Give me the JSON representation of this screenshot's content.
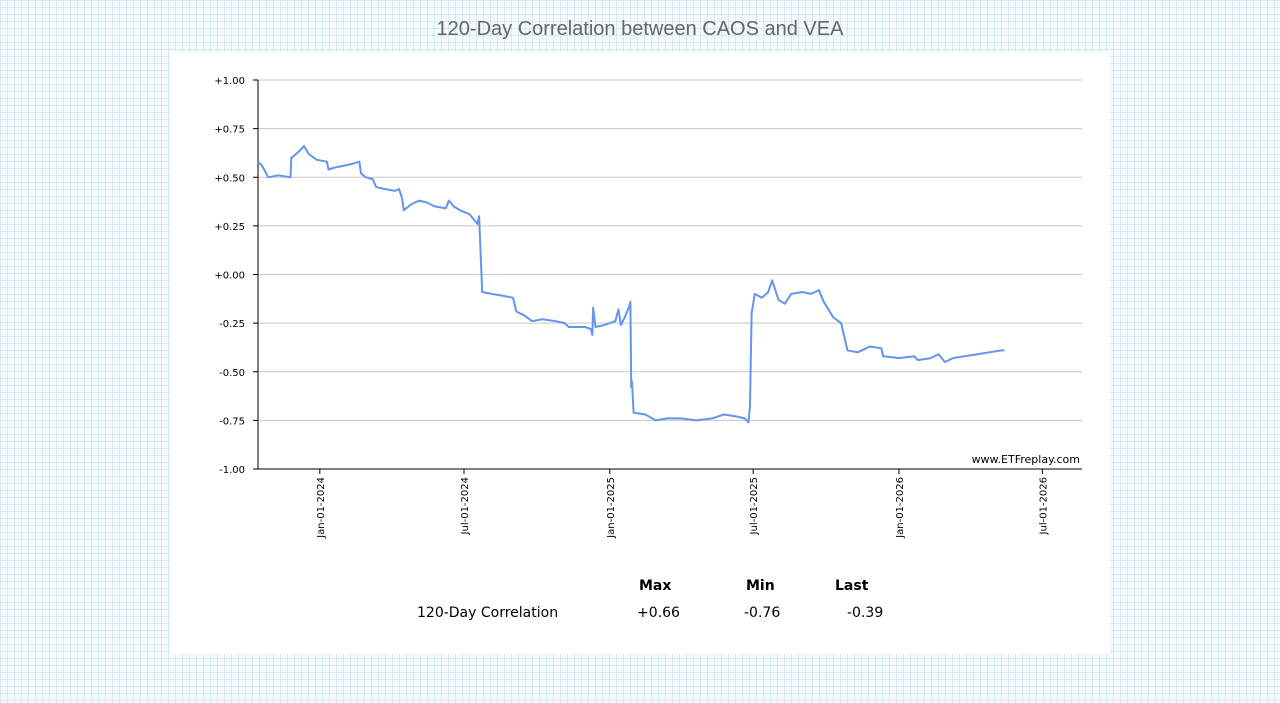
{
  "chart_data": {
    "type": "line",
    "title": "120-Day Correlation between CAOS and VEA",
    "watermark": "www.ETFreplay.com",
    "ylim": [
      -1.0,
      1.0
    ],
    "y_ticks": [
      {
        "value": 1.0,
        "label": "+1.00"
      },
      {
        "value": 0.75,
        "label": "+0.75"
      },
      {
        "value": 0.5,
        "label": "+0.50"
      },
      {
        "value": 0.25,
        "label": "+0.25"
      },
      {
        "value": 0.0,
        "label": "+0.00"
      },
      {
        "value": -0.25,
        "label": "-0.25"
      },
      {
        "value": -0.5,
        "label": "-0.50"
      },
      {
        "value": -0.75,
        "label": "-0.75"
      },
      {
        "value": -1.0,
        "label": "-1.00"
      }
    ],
    "x_ticks": [
      {
        "date": "2024-01-01",
        "label": "Jan-01-2024"
      },
      {
        "date": "2024-07-01",
        "label": "Jul-01-2024"
      },
      {
        "date": "2025-01-01",
        "label": "Jan-01-2025"
      },
      {
        "date": "2025-07-01",
        "label": "Jul-01-2025"
      },
      {
        "date": "2026-01-01",
        "label": "Jan-01-2026"
      },
      {
        "date": "2026-07-01",
        "label": "Jul-01-2026"
      }
    ],
    "xlim": [
      "2023-10-15",
      "2026-08-20"
    ],
    "grid": true,
    "line_color": "#6495ed",
    "series": [
      {
        "points": [
          [
            "2023-10-15",
            0.58
          ],
          [
            "2023-10-20",
            0.56
          ],
          [
            "2023-10-28",
            0.5
          ],
          [
            "2023-11-10",
            0.51
          ],
          [
            "2023-11-25",
            0.5
          ],
          [
            "2023-11-26",
            0.6
          ],
          [
            "2023-12-05",
            0.63
          ],
          [
            "2023-12-12",
            0.66
          ],
          [
            "2023-12-18",
            0.62
          ],
          [
            "2023-12-28",
            0.59
          ],
          [
            "2024-01-10",
            0.58
          ],
          [
            "2024-01-12",
            0.54
          ],
          [
            "2024-01-20",
            0.55
          ],
          [
            "2024-02-01",
            0.56
          ],
          [
            "2024-02-12",
            0.57
          ],
          [
            "2024-02-20",
            0.58
          ],
          [
            "2024-02-22",
            0.52
          ],
          [
            "2024-02-28",
            0.5
          ],
          [
            "2024-03-08",
            0.49
          ],
          [
            "2024-03-12",
            0.45
          ],
          [
            "2024-03-22",
            0.44
          ],
          [
            "2024-04-05",
            0.43
          ],
          [
            "2024-04-10",
            0.44
          ],
          [
            "2024-04-14",
            0.39
          ],
          [
            "2024-04-16",
            0.33
          ],
          [
            "2024-04-25",
            0.36
          ],
          [
            "2024-05-05",
            0.38
          ],
          [
            "2024-05-15",
            0.37
          ],
          [
            "2024-05-25",
            0.35
          ],
          [
            "2024-06-08",
            0.34
          ],
          [
            "2024-06-12",
            0.38
          ],
          [
            "2024-06-18",
            0.35
          ],
          [
            "2024-06-26",
            0.33
          ],
          [
            "2024-07-08",
            0.31
          ],
          [
            "2024-07-18",
            0.26
          ],
          [
            "2024-07-20",
            0.3
          ],
          [
            "2024-07-24",
            -0.09
          ],
          [
            "2024-08-05",
            -0.1
          ],
          [
            "2024-08-20",
            -0.11
          ],
          [
            "2024-09-01",
            -0.12
          ],
          [
            "2024-09-05",
            -0.19
          ],
          [
            "2024-09-15",
            -0.21
          ],
          [
            "2024-09-25",
            -0.24
          ],
          [
            "2024-10-08",
            -0.23
          ],
          [
            "2024-10-25",
            -0.24
          ],
          [
            "2024-11-05",
            -0.25
          ],
          [
            "2024-11-10",
            -0.27
          ],
          [
            "2024-11-20",
            -0.27
          ],
          [
            "2024-12-01",
            -0.27
          ],
          [
            "2024-12-08",
            -0.28
          ],
          [
            "2024-12-10",
            -0.31
          ],
          [
            "2024-12-11",
            -0.17
          ],
          [
            "2024-12-14",
            -0.27
          ],
          [
            "2024-12-25",
            -0.26
          ],
          [
            "2025-01-08",
            -0.24
          ],
          [
            "2025-01-12",
            -0.18
          ],
          [
            "2025-01-15",
            -0.26
          ],
          [
            "2025-01-20",
            -0.22
          ],
          [
            "2025-01-25",
            -0.17
          ],
          [
            "2025-01-27",
            -0.14
          ],
          [
            "2025-01-28",
            -0.58
          ],
          [
            "2025-01-29",
            -0.55
          ],
          [
            "2025-01-31",
            -0.71
          ],
          [
            "2025-02-15",
            -0.72
          ],
          [
            "2025-02-28",
            -0.75
          ],
          [
            "2025-03-15",
            -0.74
          ],
          [
            "2025-04-01",
            -0.74
          ],
          [
            "2025-04-20",
            -0.75
          ],
          [
            "2025-05-10",
            -0.74
          ],
          [
            "2025-05-25",
            -0.72
          ],
          [
            "2025-06-10",
            -0.73
          ],
          [
            "2025-06-20",
            -0.74
          ],
          [
            "2025-06-25",
            -0.76
          ],
          [
            "2025-06-27",
            -0.68
          ],
          [
            "2025-06-29",
            -0.2
          ],
          [
            "2025-07-03",
            -0.1
          ],
          [
            "2025-07-12",
            -0.12
          ],
          [
            "2025-07-20",
            -0.09
          ],
          [
            "2025-07-25",
            -0.03
          ],
          [
            "2025-08-02",
            -0.13
          ],
          [
            "2025-08-10",
            -0.15
          ],
          [
            "2025-08-18",
            -0.1
          ],
          [
            "2025-09-01",
            -0.09
          ],
          [
            "2025-09-12",
            -0.1
          ],
          [
            "2025-09-22",
            -0.08
          ],
          [
            "2025-09-28",
            -0.14
          ],
          [
            "2025-10-10",
            -0.22
          ],
          [
            "2025-10-20",
            -0.25
          ],
          [
            "2025-10-28",
            -0.39
          ],
          [
            "2025-11-10",
            -0.4
          ],
          [
            "2025-11-25",
            -0.37
          ],
          [
            "2025-12-10",
            -0.38
          ],
          [
            "2025-12-12",
            -0.42
          ],
          [
            "2026-01-01",
            -0.43
          ],
          [
            "2026-01-20",
            -0.42
          ],
          [
            "2026-01-25",
            -0.44
          ],
          [
            "2026-02-10",
            -0.43
          ],
          [
            "2026-02-20",
            -0.41
          ],
          [
            "2026-02-28",
            -0.45
          ],
          [
            "2026-03-10",
            -0.43
          ],
          [
            "2026-03-25",
            -0.42
          ],
          [
            "2026-04-10",
            -0.41
          ],
          [
            "2026-04-25",
            -0.4
          ],
          [
            "2026-05-10",
            -0.39
          ],
          [
            "2026-05-14",
            -0.39
          ]
        ]
      }
    ]
  },
  "stats": {
    "headers": [
      "Max",
      "Min",
      "Last"
    ],
    "row_label": "120-Day Correlation",
    "values": [
      "+0.66",
      "-0.76",
      "-0.39"
    ]
  }
}
